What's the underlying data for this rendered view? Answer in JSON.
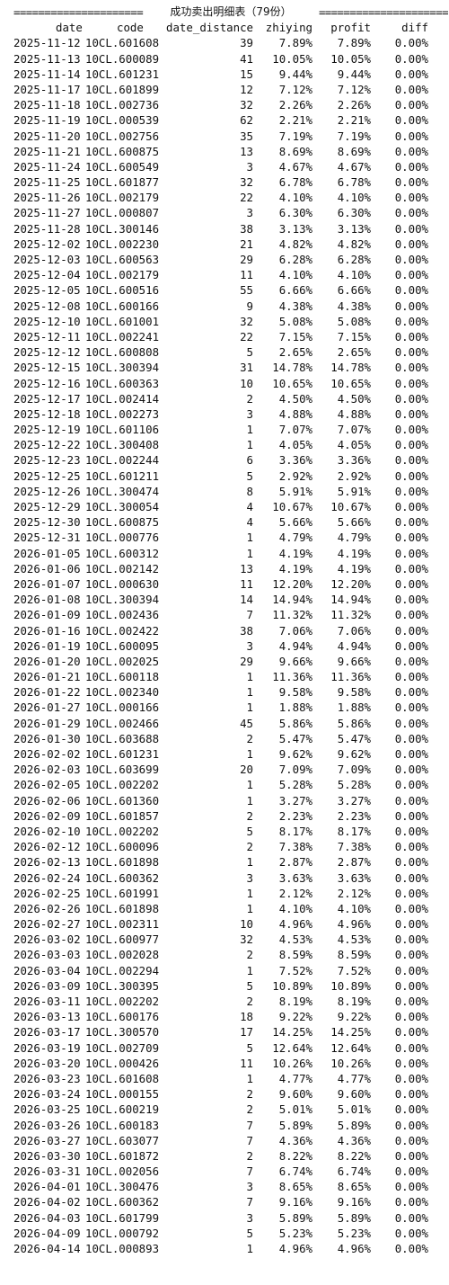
{
  "title": {
    "left_rule": "=====================",
    "text": "成功卖出明细表（79份）",
    "right_rule": "====================="
  },
  "columns": {
    "date": "date",
    "code": "code",
    "date_distance": "date_distance",
    "zhiying": "zhiying",
    "profit": "profit",
    "diff": "diff"
  },
  "rows": [
    [
      "2025-11-12",
      "10CL.601608",
      "39",
      "7.89%",
      "7.89%",
      "0.00%"
    ],
    [
      "2025-11-13",
      "10CL.600089",
      "41",
      "10.05%",
      "10.05%",
      "0.00%"
    ],
    [
      "2025-11-14",
      "10CL.601231",
      "15",
      "9.44%",
      "9.44%",
      "0.00%"
    ],
    [
      "2025-11-17",
      "10CL.601899",
      "12",
      "7.12%",
      "7.12%",
      "0.00%"
    ],
    [
      "2025-11-18",
      "10CL.002736",
      "32",
      "2.26%",
      "2.26%",
      "0.00%"
    ],
    [
      "2025-11-19",
      "10CL.000539",
      "62",
      "2.21%",
      "2.21%",
      "0.00%"
    ],
    [
      "2025-11-20",
      "10CL.002756",
      "35",
      "7.19%",
      "7.19%",
      "0.00%"
    ],
    [
      "2025-11-21",
      "10CL.600875",
      "13",
      "8.69%",
      "8.69%",
      "0.00%"
    ],
    [
      "2025-11-24",
      "10CL.600549",
      "3",
      "4.67%",
      "4.67%",
      "0.00%"
    ],
    [
      "2025-11-25",
      "10CL.601877",
      "32",
      "6.78%",
      "6.78%",
      "0.00%"
    ],
    [
      "2025-11-26",
      "10CL.002179",
      "22",
      "4.10%",
      "4.10%",
      "0.00%"
    ],
    [
      "2025-11-27",
      "10CL.000807",
      "3",
      "6.30%",
      "6.30%",
      "0.00%"
    ],
    [
      "2025-11-28",
      "10CL.300146",
      "38",
      "3.13%",
      "3.13%",
      "0.00%"
    ],
    [
      "2025-12-02",
      "10CL.002230",
      "21",
      "4.82%",
      "4.82%",
      "0.00%"
    ],
    [
      "2025-12-03",
      "10CL.600563",
      "29",
      "6.28%",
      "6.28%",
      "0.00%"
    ],
    [
      "2025-12-04",
      "10CL.002179",
      "11",
      "4.10%",
      "4.10%",
      "0.00%"
    ],
    [
      "2025-12-05",
      "10CL.600516",
      "55",
      "6.66%",
      "6.66%",
      "0.00%"
    ],
    [
      "2025-12-08",
      "10CL.600166",
      "9",
      "4.38%",
      "4.38%",
      "0.00%"
    ],
    [
      "2025-12-10",
      "10CL.601001",
      "32",
      "5.08%",
      "5.08%",
      "0.00%"
    ],
    [
      "2025-12-11",
      "10CL.002241",
      "22",
      "7.15%",
      "7.15%",
      "0.00%"
    ],
    [
      "2025-12-12",
      "10CL.600808",
      "5",
      "2.65%",
      "2.65%",
      "0.00%"
    ],
    [
      "2025-12-15",
      "10CL.300394",
      "31",
      "14.78%",
      "14.78%",
      "0.00%"
    ],
    [
      "2025-12-16",
      "10CL.600363",
      "10",
      "10.65%",
      "10.65%",
      "0.00%"
    ],
    [
      "2025-12-17",
      "10CL.002414",
      "2",
      "4.50%",
      "4.50%",
      "0.00%"
    ],
    [
      "2025-12-18",
      "10CL.002273",
      "3",
      "4.88%",
      "4.88%",
      "0.00%"
    ],
    [
      "2025-12-19",
      "10CL.601106",
      "1",
      "7.07%",
      "7.07%",
      "0.00%"
    ],
    [
      "2025-12-22",
      "10CL.300408",
      "1",
      "4.05%",
      "4.05%",
      "0.00%"
    ],
    [
      "2025-12-23",
      "10CL.002244",
      "6",
      "3.36%",
      "3.36%",
      "0.00%"
    ],
    [
      "2025-12-25",
      "10CL.601211",
      "5",
      "2.92%",
      "2.92%",
      "0.00%"
    ],
    [
      "2025-12-26",
      "10CL.300474",
      "8",
      "5.91%",
      "5.91%",
      "0.00%"
    ],
    [
      "2025-12-29",
      "10CL.300054",
      "4",
      "10.67%",
      "10.67%",
      "0.00%"
    ],
    [
      "2025-12-30",
      "10CL.600875",
      "4",
      "5.66%",
      "5.66%",
      "0.00%"
    ],
    [
      "2025-12-31",
      "10CL.000776",
      "1",
      "4.79%",
      "4.79%",
      "0.00%"
    ],
    [
      "2026-01-05",
      "10CL.600312",
      "1",
      "4.19%",
      "4.19%",
      "0.00%"
    ],
    [
      "2026-01-06",
      "10CL.002142",
      "13",
      "4.19%",
      "4.19%",
      "0.00%"
    ],
    [
      "2026-01-07",
      "10CL.000630",
      "11",
      "12.20%",
      "12.20%",
      "0.00%"
    ],
    [
      "2026-01-08",
      "10CL.300394",
      "14",
      "14.94%",
      "14.94%",
      "0.00%"
    ],
    [
      "2026-01-09",
      "10CL.002436",
      "7",
      "11.32%",
      "11.32%",
      "0.00%"
    ],
    [
      "2026-01-16",
      "10CL.002422",
      "38",
      "7.06%",
      "7.06%",
      "0.00%"
    ],
    [
      "2026-01-19",
      "10CL.600095",
      "3",
      "4.94%",
      "4.94%",
      "0.00%"
    ],
    [
      "2026-01-20",
      "10CL.002025",
      "29",
      "9.66%",
      "9.66%",
      "0.00%"
    ],
    [
      "2026-01-21",
      "10CL.600118",
      "1",
      "11.36%",
      "11.36%",
      "0.00%"
    ],
    [
      "2026-01-22",
      "10CL.002340",
      "1",
      "9.58%",
      "9.58%",
      "0.00%"
    ],
    [
      "2026-01-27",
      "10CL.000166",
      "1",
      "1.88%",
      "1.88%",
      "0.00%"
    ],
    [
      "2026-01-29",
      "10CL.002466",
      "45",
      "5.86%",
      "5.86%",
      "0.00%"
    ],
    [
      "2026-01-30",
      "10CL.603688",
      "2",
      "5.47%",
      "5.47%",
      "0.00%"
    ],
    [
      "2026-02-02",
      "10CL.601231",
      "1",
      "9.62%",
      "9.62%",
      "0.00%"
    ],
    [
      "2026-02-03",
      "10CL.603699",
      "20",
      "7.09%",
      "7.09%",
      "0.00%"
    ],
    [
      "2026-02-05",
      "10CL.002202",
      "1",
      "5.28%",
      "5.28%",
      "0.00%"
    ],
    [
      "2026-02-06",
      "10CL.601360",
      "1",
      "3.27%",
      "3.27%",
      "0.00%"
    ],
    [
      "2026-02-09",
      "10CL.601857",
      "2",
      "2.23%",
      "2.23%",
      "0.00%"
    ],
    [
      "2026-02-10",
      "10CL.002202",
      "5",
      "8.17%",
      "8.17%",
      "0.00%"
    ],
    [
      "2026-02-12",
      "10CL.600096",
      "2",
      "7.38%",
      "7.38%",
      "0.00%"
    ],
    [
      "2026-02-13",
      "10CL.601898",
      "1",
      "2.87%",
      "2.87%",
      "0.00%"
    ],
    [
      "2026-02-24",
      "10CL.600362",
      "3",
      "3.63%",
      "3.63%",
      "0.00%"
    ],
    [
      "2026-02-25",
      "10CL.601991",
      "1",
      "2.12%",
      "2.12%",
      "0.00%"
    ],
    [
      "2026-02-26",
      "10CL.601898",
      "1",
      "4.10%",
      "4.10%",
      "0.00%"
    ],
    [
      "2026-02-27",
      "10CL.002311",
      "10",
      "4.96%",
      "4.96%",
      "0.00%"
    ],
    [
      "2026-03-02",
      "10CL.600977",
      "32",
      "4.53%",
      "4.53%",
      "0.00%"
    ],
    [
      "2026-03-03",
      "10CL.002028",
      "2",
      "8.59%",
      "8.59%",
      "0.00%"
    ],
    [
      "2026-03-04",
      "10CL.002294",
      "1",
      "7.52%",
      "7.52%",
      "0.00%"
    ],
    [
      "2026-03-09",
      "10CL.300395",
      "5",
      "10.89%",
      "10.89%",
      "0.00%"
    ],
    [
      "2026-03-11",
      "10CL.002202",
      "2",
      "8.19%",
      "8.19%",
      "0.00%"
    ],
    [
      "2026-03-13",
      "10CL.600176",
      "18",
      "9.22%",
      "9.22%",
      "0.00%"
    ],
    [
      "2026-03-17",
      "10CL.300570",
      "17",
      "14.25%",
      "14.25%",
      "0.00%"
    ],
    [
      "2026-03-19",
      "10CL.002709",
      "5",
      "12.64%",
      "12.64%",
      "0.00%"
    ],
    [
      "2026-03-20",
      "10CL.000426",
      "11",
      "10.26%",
      "10.26%",
      "0.00%"
    ],
    [
      "2026-03-23",
      "10CL.601608",
      "1",
      "4.77%",
      "4.77%",
      "0.00%"
    ],
    [
      "2026-03-24",
      "10CL.000155",
      "2",
      "9.60%",
      "9.60%",
      "0.00%"
    ],
    [
      "2026-03-25",
      "10CL.600219",
      "2",
      "5.01%",
      "5.01%",
      "0.00%"
    ],
    [
      "2026-03-26",
      "10CL.600183",
      "7",
      "5.89%",
      "5.89%",
      "0.00%"
    ],
    [
      "2026-03-27",
      "10CL.603077",
      "7",
      "4.36%",
      "4.36%",
      "0.00%"
    ],
    [
      "2026-03-30",
      "10CL.601872",
      "2",
      "8.22%",
      "8.22%",
      "0.00%"
    ],
    [
      "2026-03-31",
      "10CL.002056",
      "7",
      "6.74%",
      "6.74%",
      "0.00%"
    ],
    [
      "2026-04-01",
      "10CL.300476",
      "3",
      "8.65%",
      "8.65%",
      "0.00%"
    ],
    [
      "2026-04-02",
      "10CL.600362",
      "7",
      "9.16%",
      "9.16%",
      "0.00%"
    ],
    [
      "2026-04-03",
      "10CL.601799",
      "3",
      "5.89%",
      "5.89%",
      "0.00%"
    ],
    [
      "2026-04-09",
      "10CL.000792",
      "5",
      "5.23%",
      "5.23%",
      "0.00%"
    ],
    [
      "2026-04-14",
      "10CL.000893",
      "1",
      "4.96%",
      "4.96%",
      "0.00%"
    ]
  ]
}
